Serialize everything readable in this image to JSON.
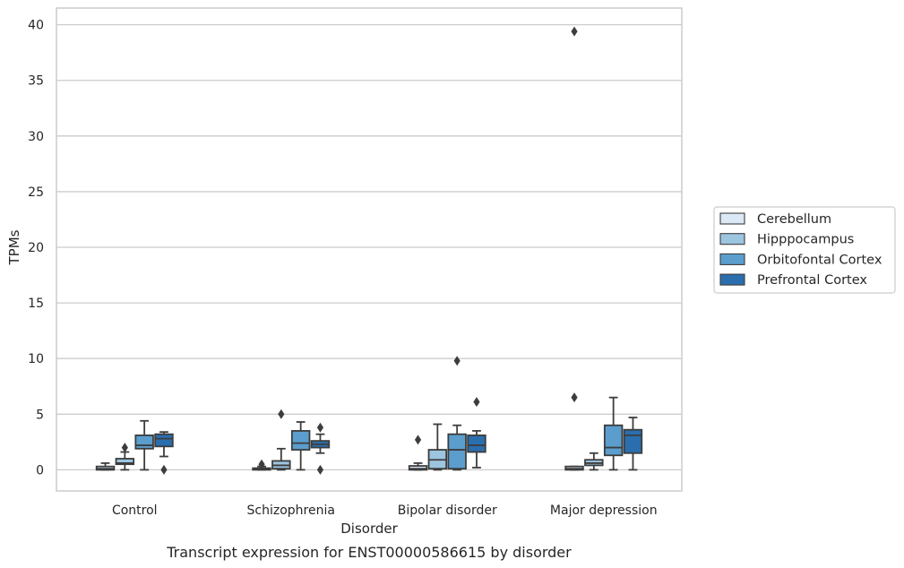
{
  "chart_data": {
    "type": "box",
    "caption": "Transcript expression for ENST00000586615 by disorder",
    "xlabel": "Disorder",
    "ylabel": "TPMs",
    "ylim": [
      -1.9,
      41.5
    ],
    "yticks": [
      0,
      5,
      10,
      15,
      20,
      25,
      30,
      35,
      40
    ],
    "grid": true,
    "legend_position": "right",
    "categories": [
      "Control",
      "Schizophrenia",
      "Bipolar disorder",
      "Major depression"
    ],
    "series": [
      {
        "name": "Cerebellum",
        "color": "#dbe9f6",
        "boxes": [
          {
            "whisker_low": 0.0,
            "q1": 0.0,
            "median": 0.1,
            "q3": 0.3,
            "whisker_high": 0.6,
            "outliers": []
          },
          {
            "whisker_low": 0.0,
            "q1": 0.0,
            "median": 0.05,
            "q3": 0.15,
            "whisker_high": 0.3,
            "outliers": [
              0.5
            ]
          },
          {
            "whisker_low": 0.0,
            "q1": 0.0,
            "median": 0.1,
            "q3": 0.35,
            "whisker_high": 0.6,
            "outliers": [
              2.7
            ]
          },
          {
            "whisker_low": 0.0,
            "q1": 0.0,
            "median": 0.1,
            "q3": 0.3,
            "whisker_high": 0.3,
            "outliers": [
              6.5,
              39.4
            ]
          }
        ]
      },
      {
        "name": "Hipppocampus",
        "color": "#9cc5e0",
        "boxes": [
          {
            "whisker_low": 0.0,
            "q1": 0.5,
            "median": 0.6,
            "q3": 1.0,
            "whisker_high": 1.6,
            "outliers": [
              2.0
            ]
          },
          {
            "whisker_low": 0.0,
            "q1": 0.1,
            "median": 0.4,
            "q3": 0.8,
            "whisker_high": 1.9,
            "outliers": [
              5.0
            ]
          },
          {
            "whisker_low": 0.0,
            "q1": 0.1,
            "median": 0.9,
            "q3": 1.8,
            "whisker_high": 4.1,
            "outliers": []
          },
          {
            "whisker_low": 0.0,
            "q1": 0.4,
            "median": 0.6,
            "q3": 0.9,
            "whisker_high": 1.5,
            "outliers": []
          }
        ]
      },
      {
        "name": "Orbitofontal Cortex",
        "color": "#5b9ecd",
        "boxes": [
          {
            "whisker_low": 0.0,
            "q1": 1.9,
            "median": 2.2,
            "q3": 3.1,
            "whisker_high": 4.4,
            "outliers": []
          },
          {
            "whisker_low": 0.0,
            "q1": 1.8,
            "median": 2.4,
            "q3": 3.5,
            "whisker_high": 4.3,
            "outliers": []
          },
          {
            "whisker_low": 0.0,
            "q1": 0.1,
            "median": 1.8,
            "q3": 3.2,
            "whisker_high": 4.0,
            "outliers": [
              9.8
            ]
          },
          {
            "whisker_low": 0.0,
            "q1": 1.3,
            "median": 2.0,
            "q3": 4.0,
            "whisker_high": 6.5,
            "outliers": []
          }
        ]
      },
      {
        "name": "Prefrontal Cortex",
        "color": "#2a6eae",
        "boxes": [
          {
            "whisker_low": 1.2,
            "q1": 2.1,
            "median": 2.8,
            "q3": 3.2,
            "whisker_high": 3.4,
            "outliers": [
              0.0
            ]
          },
          {
            "whisker_low": 1.5,
            "q1": 2.0,
            "median": 2.3,
            "q3": 2.6,
            "whisker_high": 3.2,
            "outliers": [
              0.0,
              3.8
            ]
          },
          {
            "whisker_low": 0.2,
            "q1": 1.6,
            "median": 2.2,
            "q3": 3.1,
            "whisker_high": 3.5,
            "outliers": [
              6.1
            ]
          },
          {
            "whisker_low": 0.0,
            "q1": 1.5,
            "median": 3.1,
            "q3": 3.6,
            "whisker_high": 4.7,
            "outliers": []
          }
        ]
      }
    ]
  }
}
